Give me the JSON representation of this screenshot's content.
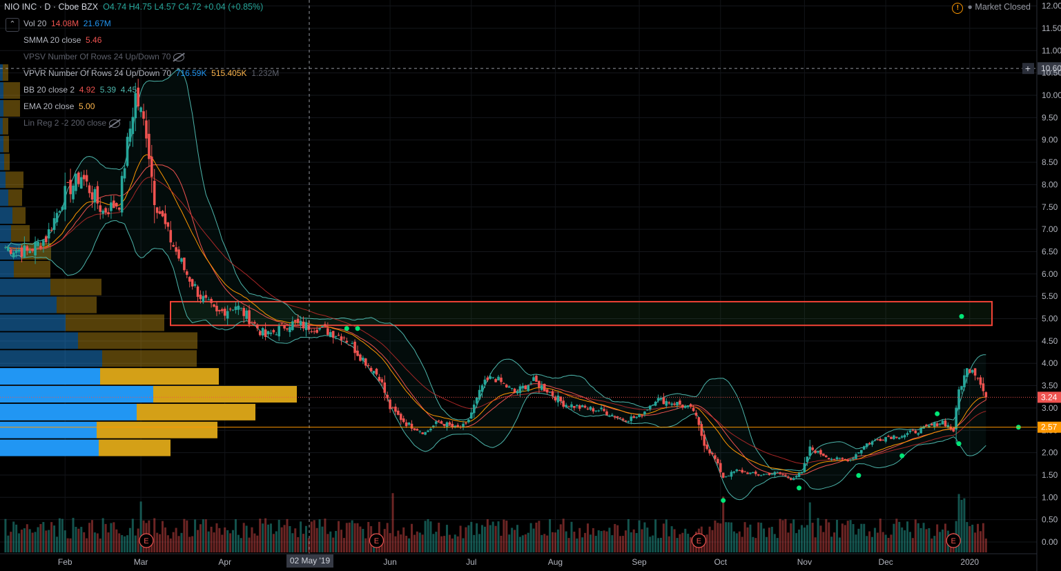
{
  "header": {
    "symbol": "NIO INC · D · Cboe BZX",
    "open": "O4.74",
    "high": "H4.75",
    "low": "L4.57",
    "close": "C4.72",
    "change": "+0.04 (+0.85%)",
    "market_status": "Market Closed",
    "alert_glyph": "!"
  },
  "legend": {
    "vol": {
      "name": "Vol 20",
      "v1": "14.08M",
      "v2": "21.67M"
    },
    "smma": {
      "name": "SMMA 20 close",
      "v1": "5.46"
    },
    "vpsv": {
      "name": "VPSV Number Of Rows 24 Up/Down 70"
    },
    "vpvr": {
      "name": "VPVR Number Of Rows 24 Up/Down 70",
      "v1": "716.59K",
      "v2": "515.405K",
      "v3": "1.232M"
    },
    "bb": {
      "name": "BB 20 close 2",
      "v1": "4.92",
      "v2": "5.39",
      "v3": "4.45"
    },
    "ema": {
      "name": "EMA 20 close",
      "v1": "5.00"
    },
    "linreg": {
      "name": "Lin Reg 2 -2 200 close"
    }
  },
  "crosshair": {
    "date_label": "02 May '19",
    "price_label": "10.60"
  },
  "colors": {
    "up": "#26a69a",
    "down": "#ef5350",
    "vp_blue": "#2196f3",
    "vp_gold": "#d4a017",
    "zone": "#f44336",
    "axis_bg": "#000000"
  },
  "chart_data": {
    "type": "candlestick",
    "title": "NIO INC · D · Cboe BZX",
    "ylim": [
      0.0,
      12.0
    ],
    "y_ticks": [
      "0.00",
      "0.50",
      "1.00",
      "1.50",
      "2.00",
      "2.50",
      "3.00",
      "3.50",
      "4.00",
      "4.50",
      "5.00",
      "5.50",
      "6.00",
      "6.50",
      "7.00",
      "7.50",
      "8.00",
      "8.50",
      "9.00",
      "9.50",
      "10.00",
      "10.50",
      "11.00",
      "11.50",
      "12.00"
    ],
    "x_ticks": [
      {
        "label": "Feb",
        "d": 22
      },
      {
        "label": "Mar",
        "d": 50
      },
      {
        "label": "Apr",
        "d": 81
      },
      {
        "label": "Jun",
        "d": 142
      },
      {
        "label": "Jul",
        "d": 172
      },
      {
        "label": "Aug",
        "d": 203
      },
      {
        "label": "Sep",
        "d": 234
      },
      {
        "label": "Oct",
        "d": 264
      },
      {
        "label": "Nov",
        "d": 295
      },
      {
        "label": "Dec",
        "d": 325
      },
      {
        "label": "2020",
        "d": 356
      }
    ],
    "x_range_days": [
      -1,
      379
    ],
    "price_markers": [
      {
        "label": "3.24",
        "value": 3.24,
        "color": "#ef5350"
      },
      {
        "label": "2.57",
        "value": 2.57,
        "color": "#ff9800"
      }
    ],
    "earnings_days": [
      52,
      137,
      256,
      350
    ],
    "earnings_glyph": "E",
    "resistance_zone": {
      "low": 4.85,
      "high": 5.38
    },
    "key_points": [
      {
        "d": 0,
        "close": 6.6
      },
      {
        "d": 8,
        "close": 6.5
      },
      {
        "d": 15,
        "close": 6.8
      },
      {
        "d": 22,
        "close": 7.8
      },
      {
        "d": 28,
        "close": 8.2
      },
      {
        "d": 36,
        "close": 7.4
      },
      {
        "d": 42,
        "close": 7.6
      },
      {
        "d": 45,
        "close": 8.9
      },
      {
        "d": 48,
        "close": 10.0
      },
      {
        "d": 52,
        "close": 9.2
      },
      {
        "d": 55,
        "close": 7.7
      },
      {
        "d": 60,
        "close": 6.9
      },
      {
        "d": 66,
        "close": 6.1
      },
      {
        "d": 72,
        "close": 5.5
      },
      {
        "d": 78,
        "close": 5.1
      },
      {
        "d": 85,
        "close": 5.3
      },
      {
        "d": 90,
        "close": 5.0
      },
      {
        "d": 96,
        "close": 4.6
      },
      {
        "d": 105,
        "close": 4.9
      },
      {
        "d": 115,
        "close": 4.8
      },
      {
        "d": 125,
        "close": 4.6
      },
      {
        "d": 132,
        "close": 4.1
      },
      {
        "d": 138,
        "close": 3.7
      },
      {
        "d": 142,
        "close": 3.0
      },
      {
        "d": 148,
        "close": 2.65
      },
      {
        "d": 155,
        "close": 2.45
      },
      {
        "d": 160,
        "close": 2.7
      },
      {
        "d": 166,
        "close": 2.55
      },
      {
        "d": 170,
        "close": 2.6
      },
      {
        "d": 176,
        "close": 3.5
      },
      {
        "d": 180,
        "close": 3.7
      },
      {
        "d": 188,
        "close": 3.35
      },
      {
        "d": 195,
        "close": 3.6
      },
      {
        "d": 200,
        "close": 3.4
      },
      {
        "d": 206,
        "close": 3.1
      },
      {
        "d": 213,
        "close": 3.0
      },
      {
        "d": 220,
        "close": 2.95
      },
      {
        "d": 228,
        "close": 2.75
      },
      {
        "d": 234,
        "close": 2.8
      },
      {
        "d": 240,
        "close": 3.2
      },
      {
        "d": 248,
        "close": 3.1
      },
      {
        "d": 254,
        "close": 2.95
      },
      {
        "d": 258,
        "close": 2.2
      },
      {
        "d": 262,
        "close": 1.85
      },
      {
        "d": 265,
        "close": 1.45
      },
      {
        "d": 270,
        "close": 1.6
      },
      {
        "d": 278,
        "close": 1.5
      },
      {
        "d": 285,
        "close": 1.55
      },
      {
        "d": 290,
        "close": 1.42
      },
      {
        "d": 294,
        "close": 1.55
      },
      {
        "d": 297,
        "close": 2.1
      },
      {
        "d": 300,
        "close": 2.0
      },
      {
        "d": 306,
        "close": 1.85
      },
      {
        "d": 312,
        "close": 1.85
      },
      {
        "d": 318,
        "close": 2.2
      },
      {
        "d": 325,
        "close": 2.35
      },
      {
        "d": 332,
        "close": 2.4
      },
      {
        "d": 340,
        "close": 2.55
      },
      {
        "d": 346,
        "close": 2.7
      },
      {
        "d": 350,
        "close": 2.5
      },
      {
        "d": 352,
        "close": 3.4
      },
      {
        "d": 355,
        "close": 3.85
      },
      {
        "d": 357,
        "close": 3.9
      },
      {
        "d": 360,
        "close": 3.6
      },
      {
        "d": 362,
        "close": 3.24
      }
    ],
    "green_dots": [
      {
        "d": 126,
        "v": 4.78
      },
      {
        "d": 130,
        "v": 4.78
      },
      {
        "d": 265,
        "v": 0.93
      },
      {
        "d": 293,
        "v": 1.21
      },
      {
        "d": 315,
        "v": 1.49
      },
      {
        "d": 331,
        "v": 1.93
      },
      {
        "d": 344,
        "v": 2.87
      },
      {
        "d": 352,
        "v": 2.2
      },
      {
        "d": 353,
        "v": 5.05
      },
      {
        "d": 374,
        "v": 2.57
      }
    ],
    "volume_profile": [
      {
        "price": 2.1,
        "up": 143,
        "down": 104
      },
      {
        "price": 2.5,
        "up": 140,
        "down": 175
      },
      {
        "price": 2.9,
        "up": 198,
        "down": 172
      },
      {
        "price": 3.3,
        "up": 222,
        "down": 208
      },
      {
        "price": 3.7,
        "up": 145,
        "down": 172
      },
      {
        "price": 4.1,
        "up": 148,
        "down": 137
      },
      {
        "price": 4.5,
        "up": 113,
        "down": 173
      },
      {
        "price": 4.9,
        "up": 95,
        "down": 143
      },
      {
        "price": 5.3,
        "up": 82,
        "down": 58
      },
      {
        "price": 5.7,
        "up": 73,
        "down": 74
      },
      {
        "price": 6.1,
        "up": 20,
        "down": 53
      },
      {
        "price": 6.5,
        "up": 30,
        "down": 44
      },
      {
        "price": 6.9,
        "up": 16,
        "down": 27
      },
      {
        "price": 7.3,
        "up": 18,
        "down": 19
      },
      {
        "price": 7.7,
        "up": 12,
        "down": 20
      },
      {
        "price": 8.1,
        "up": 8,
        "down": 26
      },
      {
        "price": 8.5,
        "up": 6,
        "down": 8
      },
      {
        "price": 8.9,
        "up": 5,
        "down": 8
      },
      {
        "price": 9.3,
        "up": 4,
        "down": 8
      },
      {
        "price": 9.7,
        "up": 5,
        "down": 24
      },
      {
        "price": 10.1,
        "up": 5,
        "down": 24
      },
      {
        "price": 10.5,
        "up": 4,
        "down": 8
      }
    ]
  }
}
